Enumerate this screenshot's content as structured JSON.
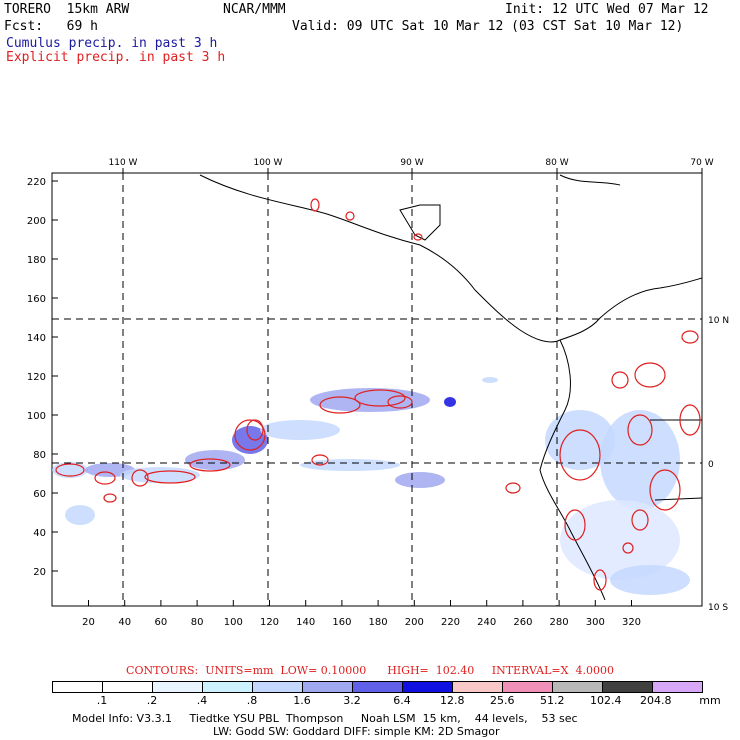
{
  "header": {
    "model": "TORERO  15km ARW",
    "org": "NCAR/MMM",
    "init": "Init: 12 UTC Wed 07 Mar 12",
    "fcst": "Fcst:   69 h",
    "valid": "Valid: 09 UTC Sat 10 Mar 12 (03 CST Sat 10 Mar 12)",
    "cumulus": "Cumulus precip. in past 3 h",
    "explicit": "Explicit precip. in past 3 h"
  },
  "top_lon": [
    "110 W",
    "100 W",
    "90 W",
    "80 W",
    "70 W"
  ],
  "right_lat": [
    "10 N",
    "0",
    "10 S"
  ],
  "y_ticks": [
    "220",
    "200",
    "180",
    "160",
    "140",
    "120",
    "100",
    "80",
    "60",
    "40",
    "20"
  ],
  "x_ticks": [
    "20",
    "40",
    "60",
    "80",
    "100",
    "120",
    "140",
    "160",
    "180",
    "200",
    "220",
    "240",
    "260",
    "280",
    "300",
    "320"
  ],
  "contours": "CONTOURS:  UNITS=mm  LOW= 0.10000      HIGH=  102.40     INTERVAL=X  4.0000",
  "legend": {
    "labels": [
      ".1",
      ".2",
      ".4",
      ".8",
      "1.6",
      "3.2",
      "6.4",
      "12.8",
      "25.6",
      "51.2",
      "102.4",
      "204.8",
      "mm"
    ],
    "colors": [
      "#ffffff",
      "#ffffff",
      "#e8f4ff",
      "#ccf2ff",
      "#c4d8ff",
      "#a0a8f0",
      "#6060e8",
      "#1010e0",
      "#f8c8c8",
      "#f090b8",
      "#b8b8b8",
      "#404040",
      "#d8a8f8"
    ]
  },
  "footer": {
    "line1": "Model Info: V3.3.1     Tiedtke YSU PBL  Thompson     Noah LSM  15 km,    44 levels,    53 sec",
    "line2": "LW: Godd SW: Goddard DIFF: simple KM: 2D Smagor"
  },
  "icons": {
    "map": "precip-map"
  }
}
